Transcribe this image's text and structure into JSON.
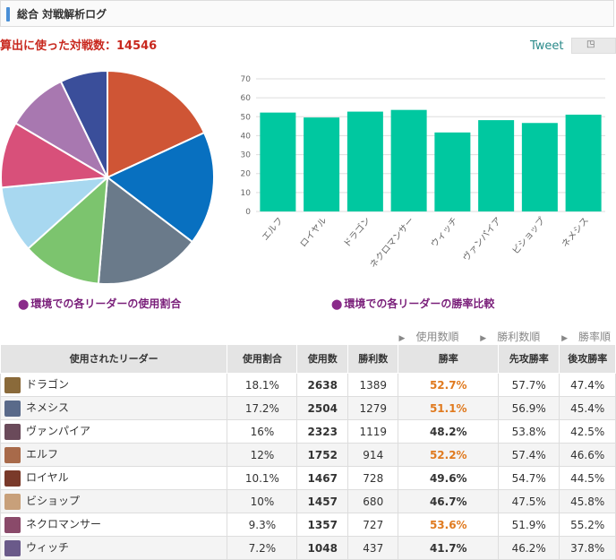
{
  "header": {
    "title": "総合 対戦解析ログ"
  },
  "battle_count_label": "算出に使った対戦数：14546",
  "tweet_label": "Tweet",
  "pie_caption": "環境での各リーダーの使用割合",
  "bar_caption": "環境での各リーダーの勝率比較",
  "sort_links": [
    "使用数順",
    "勝利数順",
    "勝率順"
  ],
  "table": {
    "headers": [
      "使用されたリーダー",
      "使用割合",
      "使用数",
      "勝利数",
      "勝率",
      "先攻勝率",
      "後攻勝率"
    ],
    "rows": [
      {
        "leader": "ドラゴン",
        "ratio": "18.1%",
        "uses": "2638",
        "wins": "1389",
        "winrate": "52.7%",
        "first": "57.7%",
        "second": "47.4%",
        "hl": true,
        "color": "#8a6a3a"
      },
      {
        "leader": "ネメシス",
        "ratio": "17.2%",
        "uses": "2504",
        "wins": "1279",
        "winrate": "51.1%",
        "first": "56.9%",
        "second": "45.4%",
        "hl": true,
        "color": "#5a6a8a"
      },
      {
        "leader": "ヴァンパイア",
        "ratio": "16%",
        "uses": "2323",
        "wins": "1119",
        "winrate": "48.2%",
        "first": "53.8%",
        "second": "42.5%",
        "hl": false,
        "color": "#6a4a5a"
      },
      {
        "leader": "エルフ",
        "ratio": "12%",
        "uses": "1752",
        "wins": "914",
        "winrate": "52.2%",
        "first": "57.4%",
        "second": "46.6%",
        "hl": true,
        "color": "#a86a4a"
      },
      {
        "leader": "ロイヤル",
        "ratio": "10.1%",
        "uses": "1467",
        "wins": "728",
        "winrate": "49.6%",
        "first": "54.7%",
        "second": "44.5%",
        "hl": false,
        "color": "#7a3a2a"
      },
      {
        "leader": "ビショップ",
        "ratio": "10%",
        "uses": "1457",
        "wins": "680",
        "winrate": "46.7%",
        "first": "47.5%",
        "second": "45.8%",
        "hl": false,
        "color": "#c8a07a"
      },
      {
        "leader": "ネクロマンサー",
        "ratio": "9.3%",
        "uses": "1357",
        "wins": "727",
        "winrate": "53.6%",
        "first": "51.9%",
        "second": "55.2%",
        "hl": true,
        "color": "#8a4a6a"
      },
      {
        "leader": "ウィッチ",
        "ratio": "7.2%",
        "uses": "1048",
        "wins": "437",
        "winrate": "41.7%",
        "first": "46.2%",
        "second": "37.8%",
        "hl": false,
        "color": "#6a5a8a"
      }
    ]
  },
  "chart_data": [
    {
      "type": "pie",
      "categories": [
        "ドラゴン",
        "ネメシス",
        "ヴァンパイア",
        "エルフ",
        "ロイヤル",
        "ビショップ",
        "ネクロマンサー",
        "ウィッチ"
      ],
      "values": [
        18.1,
        17.2,
        16,
        12,
        10.1,
        10,
        9.3,
        7.2
      ],
      "colors": [
        "#cf5535",
        "#0870c0",
        "#6a7a8a",
        "#7cc46e",
        "#a8d8f0",
        "#d8507a",
        "#a878b0",
        "#3a4e9a"
      ]
    },
    {
      "type": "bar",
      "categories": [
        "エルフ",
        "ロイヤル",
        "ドラゴン",
        "ネクロマンサー",
        "ウィッチ",
        "ヴァンパイア",
        "ビショップ",
        "ネメシス"
      ],
      "values": [
        52.2,
        49.6,
        52.7,
        53.6,
        41.7,
        48.2,
        46.7,
        51.1
      ],
      "ylim": [
        0,
        70
      ],
      "yticks": [
        0,
        10,
        20,
        30,
        40,
        50,
        60,
        70
      ],
      "color": "#00c8a0",
      "grid": true
    }
  ]
}
